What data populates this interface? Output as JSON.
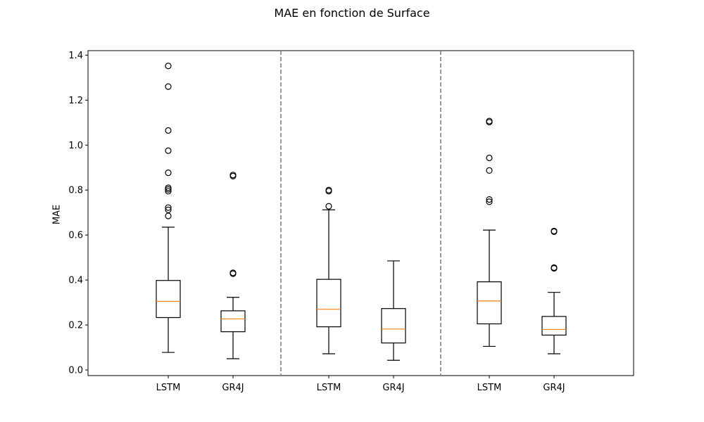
{
  "chart_data": {
    "type": "box",
    "title": "MAE en fonction de Surface",
    "xlabel": "",
    "ylabel": "MAE",
    "ylim": [
      -0.025,
      1.42
    ],
    "yticks": [
      "0.0",
      "0.2",
      "0.4",
      "0.6",
      "0.8",
      "1.0",
      "1.2",
      "1.4"
    ],
    "ytick_values": [
      0.0,
      0.2,
      0.4,
      0.6,
      0.8,
      1.0,
      1.2,
      1.4
    ],
    "groups": [
      {
        "boxes": [
          {
            "label": "LSTM",
            "whisker_low": 0.078,
            "q1": 0.233,
            "median": 0.305,
            "q3": 0.398,
            "whisker_high": 0.635,
            "outliers": [
              0.685,
              0.712,
              0.722,
              0.795,
              0.803,
              0.81,
              0.877,
              0.975,
              1.065,
              1.26,
              1.352
            ]
          },
          {
            "label": "GR4J",
            "whisker_low": 0.05,
            "q1": 0.17,
            "median": 0.227,
            "q3": 0.263,
            "whisker_high": 0.323,
            "outliers": [
              0.428,
              0.432,
              0.862,
              0.867
            ]
          }
        ]
      },
      {
        "boxes": [
          {
            "label": "LSTM",
            "whisker_low": 0.072,
            "q1": 0.192,
            "median": 0.27,
            "q3": 0.403,
            "whisker_high": 0.712,
            "outliers": [
              0.728,
              0.795,
              0.8
            ]
          },
          {
            "label": "GR4J",
            "whisker_low": 0.043,
            "q1": 0.12,
            "median": 0.182,
            "q3": 0.273,
            "whisker_high": 0.485,
            "outliers": []
          }
        ]
      },
      {
        "boxes": [
          {
            "label": "LSTM",
            "whisker_low": 0.105,
            "q1": 0.205,
            "median": 0.307,
            "q3": 0.392,
            "whisker_high": 0.622,
            "outliers": [
              0.748,
              0.758,
              0.887,
              0.943,
              1.102,
              1.107
            ]
          },
          {
            "label": "GR4J",
            "whisker_low": 0.072,
            "q1": 0.155,
            "median": 0.18,
            "q3": 0.238,
            "whisker_high": 0.345,
            "outliers": [
              0.452,
              0.455,
              0.615,
              0.618
            ]
          }
        ]
      }
    ],
    "separators": "dashed vertical lines between groups",
    "colors": {
      "box": "#000000",
      "median": "#ff7f0e",
      "separator": "#808080"
    }
  }
}
